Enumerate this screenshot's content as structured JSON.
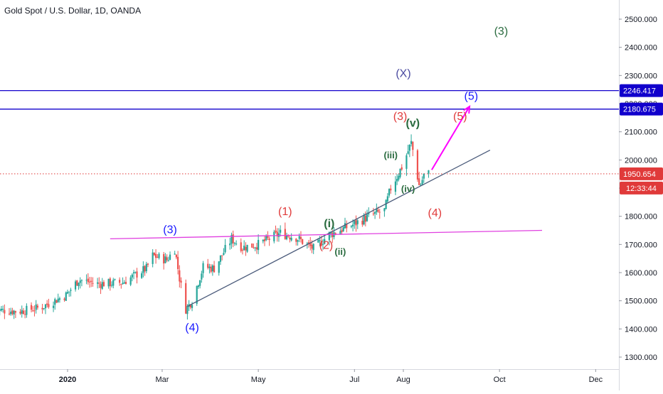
{
  "title": "Gold Spot / U.S. Dollar, 1D, OANDA",
  "chart_data": {
    "type": "candlestick",
    "symbol": "Gold Spot / U.S. Dollar",
    "interval": "1D",
    "source": "OANDA",
    "ylim": [
      1250,
      2560
    ],
    "y_ticks": [
      "1300.000",
      "1400.000",
      "1500.000",
      "1600.000",
      "1700.000",
      "1800.000",
      "1900.000",
      "2000.000",
      "2100.000",
      "2200.000",
      "2300.000",
      "2400.000",
      "2500.000"
    ],
    "x_ticks": [
      {
        "label": "2020",
        "date": "2020-01-01",
        "bold": true
      },
      {
        "label": "Mar",
        "date": "2020-03-01"
      },
      {
        "label": "May",
        "date": "2020-05-01"
      },
      {
        "label": "Jul",
        "date": "2020-07-01"
      },
      {
        "label": "Aug",
        "date": "2020-08-01"
      },
      {
        "label": "Oct",
        "date": "2020-10-01"
      },
      {
        "label": "Dec",
        "date": "2020-12-01"
      }
    ],
    "price_path": [
      [
        "2019-11-15",
        1468
      ],
      [
        "2019-12-01",
        1462
      ],
      [
        "2019-12-15",
        1476
      ],
      [
        "2019-12-31",
        1520
      ],
      [
        "2020-01-08",
        1575
      ],
      [
        "2020-01-20",
        1560
      ],
      [
        "2020-02-05",
        1565
      ],
      [
        "2020-02-20",
        1615
      ],
      [
        "2020-02-24",
        1660
      ],
      [
        "2020-03-04",
        1645
      ],
      [
        "2020-03-09",
        1685
      ],
      [
        "2020-03-12",
        1580
      ],
      [
        "2020-03-16",
        1470
      ],
      [
        "2020-03-20",
        1500
      ],
      [
        "2020-03-27",
        1620
      ],
      [
        "2020-04-03",
        1615
      ],
      [
        "2020-04-14",
        1720
      ],
      [
        "2020-04-21",
        1690
      ],
      [
        "2020-05-01",
        1700
      ],
      [
        "2020-05-15",
        1740
      ],
      [
        "2020-05-25",
        1725
      ],
      [
        "2020-06-05",
        1685
      ],
      [
        "2020-06-15",
        1735
      ],
      [
        "2020-06-30",
        1770
      ],
      [
        "2020-07-10",
        1800
      ],
      [
        "2020-07-20",
        1820
      ],
      [
        "2020-07-24",
        1900
      ],
      [
        "2020-07-31",
        1975
      ],
      [
        "2020-08-06",
        2060
      ],
      [
        "2020-08-07",
        2035
      ],
      [
        "2020-08-11",
        1910
      ],
      [
        "2020-08-12",
        1915
      ],
      [
        "2020-08-14",
        1945
      ],
      [
        "2020-08-17",
        1950.654
      ]
    ],
    "horizontal_lines": [
      {
        "price": 2246.417,
        "label": "2246.417",
        "color": "#1100cc"
      },
      {
        "price": 2180.675,
        "label": "2180.675",
        "color": "#1100cc"
      }
    ],
    "current_price": {
      "price": 1950.654,
      "label": "1950.654",
      "countdown": "12:33:44",
      "color": "#e03a3a"
    },
    "trendlines": [
      {
        "name": "rising-support",
        "color": "#4a5a7a",
        "from": [
          "2020-03-17",
          1480
        ],
        "to": [
          "2020-09-25",
          2035
        ]
      },
      {
        "name": "horizontal-resistance",
        "color": "#e040e0",
        "from": [
          "2020-01-28",
          1720
        ],
        "to": [
          "2020-10-28",
          1750
        ]
      }
    ],
    "projection_arrow": {
      "color": "#ff00ff",
      "from": [
        "2020-08-19",
        1965
      ],
      "to": [
        "2020-09-12",
        2190
      ]
    },
    "wave_labels": [
      {
        "text": "(3)",
        "date": "2020-10-02",
        "price": 2455,
        "color": "#2a6b3f"
      },
      {
        "text": "(X)",
        "date": "2020-08-01",
        "price": 2305,
        "color": "#4a4aa0"
      },
      {
        "text": "(5)",
        "date": "2020-09-13",
        "price": 2225,
        "color": "#1a1aff"
      },
      {
        "text": "(3)",
        "date": "2020-07-30",
        "price": 2153,
        "color": "#e03a3a"
      },
      {
        "text": "(5)",
        "date": "2020-09-06",
        "price": 2153,
        "color": "#e03a3a"
      },
      {
        "text": "(v)",
        "date": "2020-08-07",
        "price": 2129,
        "color": "#2a6b3f"
      },
      {
        "text": "(iii)",
        "date": "2020-07-24",
        "price": 2015,
        "color": "#2a6b3f"
      },
      {
        "text": "(iv)",
        "date": "2020-08-04",
        "price": 1895,
        "color": "#2a6b3f"
      },
      {
        "text": "(4)",
        "date": "2020-08-21",
        "price": 1810,
        "color": "#e03a3a"
      },
      {
        "text": "(1)",
        "date": "2020-05-18",
        "price": 1815,
        "color": "#e03a3a"
      },
      {
        "text": "(i)",
        "date": "2020-06-15",
        "price": 1772,
        "color": "#2a6b3f"
      },
      {
        "text": "(ii)",
        "date": "2020-06-22",
        "price": 1672,
        "color": "#2a6b3f"
      },
      {
        "text": "(2)",
        "date": "2020-06-13",
        "price": 1695,
        "color": "#e03a3a"
      },
      {
        "text": "(3)",
        "date": "2020-03-06",
        "price": 1750,
        "color": "#1a1aff"
      },
      {
        "text": "(4)",
        "date": "2020-03-20",
        "price": 1403,
        "color": "#1a1aff"
      }
    ],
    "grid": false,
    "candle_colors": {
      "up": "#26a69a",
      "down": "#ef5350"
    }
  }
}
